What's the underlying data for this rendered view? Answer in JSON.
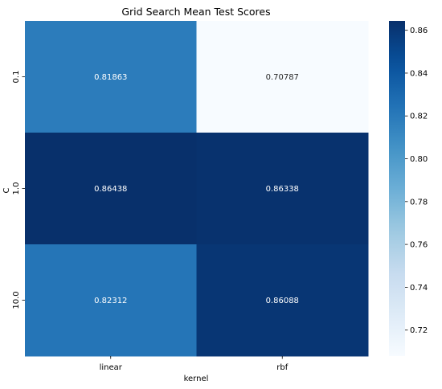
{
  "chart_data": {
    "type": "heatmap",
    "title": "Grid Search Mean Test Scores",
    "xlabel": "kernel",
    "ylabel": "C",
    "x_categories": [
      "linear",
      "rbf"
    ],
    "y_categories": [
      "0.1",
      "1.0",
      "10.0"
    ],
    "values": [
      [
        0.81863,
        0.70787
      ],
      [
        0.86438,
        0.86338
      ],
      [
        0.82312,
        0.86088
      ]
    ],
    "value_labels": [
      [
        "0.81863",
        "0.70787"
      ],
      [
        "0.86438",
        "0.86338"
      ],
      [
        "0.82312",
        "0.86088"
      ]
    ],
    "colormap": "Blues",
    "vmin": 0.70787,
    "vmax": 0.86438,
    "colorbar_ticks": [
      0.72,
      0.74,
      0.76,
      0.78,
      0.8,
      0.82,
      0.84,
      0.86
    ],
    "colorbar_tick_labels": [
      "0.72",
      "0.74",
      "0.76",
      "0.78",
      "0.80",
      "0.82",
      "0.84",
      "0.86"
    ],
    "legend": "colorbar-right",
    "grid": false
  }
}
